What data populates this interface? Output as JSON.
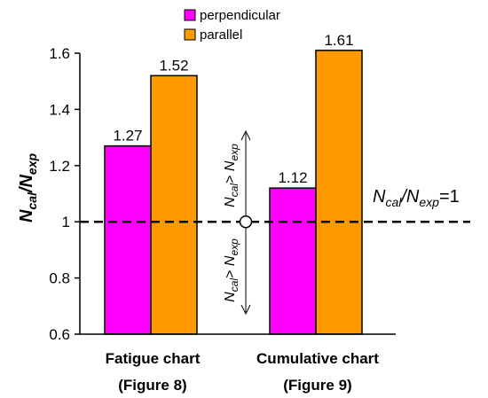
{
  "chart_data": {
    "type": "bar",
    "categories": [
      {
        "name": "Fatigue chart",
        "sub": "(Figure 8)"
      },
      {
        "name": "Cumulative chart",
        "sub": "(Figure 9)"
      }
    ],
    "series": [
      {
        "name": "perpendicular",
        "color": "#FF00FF",
        "values": [
          1.27,
          1.12
        ]
      },
      {
        "name": "parallel",
        "color": "#FF9900",
        "values": [
          1.52,
          1.61
        ]
      }
    ],
    "value_labels": [
      [
        "1.27",
        "1.52"
      ],
      [
        "1.12",
        "1.61"
      ]
    ],
    "ylim": [
      0.6,
      1.6
    ],
    "yticks": [
      0.6,
      0.8,
      1,
      1.2,
      1.4,
      1.6
    ],
    "ytick_labels": [
      "0.6",
      "0.8",
      "1",
      "1.2",
      "1.4",
      "1.6"
    ],
    "ylabel": {
      "base1": "N",
      "sub1": "cal",
      "sep": "/",
      "base2": "N",
      "sub2": "exp"
    },
    "reference_line": {
      "value": 1,
      "style": "dashed",
      "label": {
        "base1": "N",
        "sub1": "cal",
        "sep": "/",
        "base2": "N",
        "sub2": "exp",
        "suffix": "=1"
      }
    },
    "annotations": {
      "upper": {
        "base1": "N",
        "sub1": "cal",
        "op": "> ",
        "base2": "N",
        "sub2": "exp"
      },
      "lower": {
        "base1": "N",
        "sub1": "cal",
        "op": "> ",
        "base2": "N",
        "sub2": "exp"
      }
    },
    "legend_position": "top",
    "grid": false
  }
}
